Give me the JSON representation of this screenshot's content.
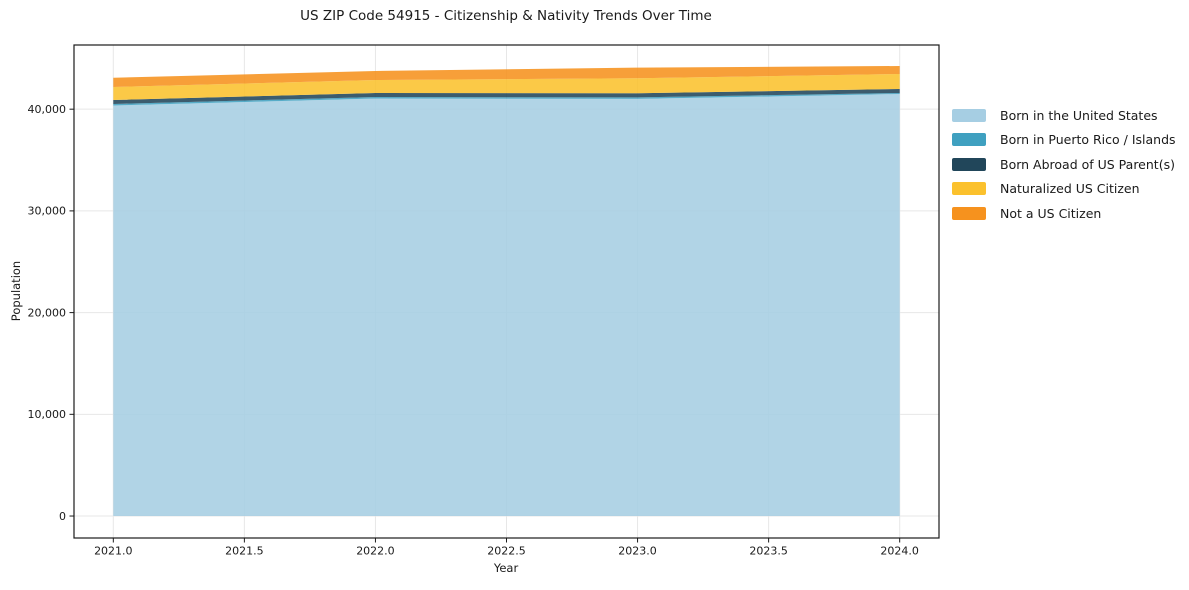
{
  "title": "US ZIP Code 54915 - Citizenship & Nativity Trends Over Time",
  "chart_data": {
    "type": "area",
    "stacked": true,
    "title": "US ZIP Code 54915 - Citizenship & Nativity Trends Over Time",
    "xlabel": "Year",
    "ylabel": "Population",
    "x": [
      2021,
      2022,
      2023,
      2024
    ],
    "series": [
      {
        "name": "Born in the United States",
        "color": "#A6CEE3",
        "values": [
          40360,
          41050,
          41010,
          41490
        ]
      },
      {
        "name": "Born in Puerto Rico / Islands",
        "color": "#3FA0C0",
        "values": [
          150,
          150,
          150,
          100
        ]
      },
      {
        "name": "Born Abroad of US Parent(s)",
        "color": "#21465A",
        "values": [
          390,
          390,
          410,
          395
        ]
      },
      {
        "name": "Naturalized US Citizen",
        "color": "#FBC12D",
        "values": [
          1280,
          1280,
          1475,
          1475
        ]
      },
      {
        "name": "Not a US Citizen",
        "color": "#F6921E",
        "values": [
          915,
          885,
          1040,
          785
        ]
      }
    ],
    "xlim": [
      2020.85,
      2024.15
    ],
    "ylim": [
      -2160,
      46310
    ],
    "x_ticks": [
      2021.0,
      2021.5,
      2022.0,
      2022.5,
      2023.0,
      2023.5,
      2024.0
    ],
    "x_tick_labels": [
      "2021.0",
      "2021.5",
      "2022.0",
      "2022.5",
      "2023.0",
      "2023.5",
      "2024.0"
    ],
    "y_ticks": [
      0,
      10000,
      20000,
      30000,
      40000
    ],
    "y_tick_labels": [
      "0",
      "10,000",
      "20,000",
      "30,000",
      "40,000"
    ],
    "grid": true,
    "legend_position": "right",
    "fill_alpha": 0.88,
    "styles": {
      "grid_color": "#e7e7e7",
      "spine_color": "#1a1a1a",
      "tick_color": "#1a1a1a",
      "text_color": "#1a1a1a",
      "background": "#ffffff"
    }
  }
}
